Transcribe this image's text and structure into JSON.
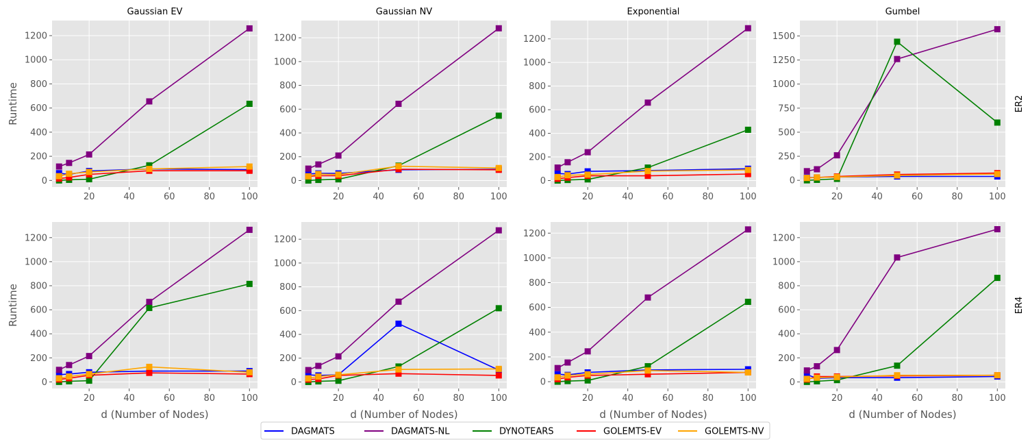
{
  "figure": {
    "row_labels": [
      "ER2",
      "ER4"
    ],
    "col_titles": [
      "Gaussian EV",
      "Gaussian NV",
      "Exponential",
      "Gumbel"
    ],
    "xlabel": "d (Number of Nodes)",
    "ylabel": "Runtime"
  },
  "legend": {
    "placement": "bottom-center",
    "items": [
      {
        "name": "DAGMATS",
        "color": "#0000ff"
      },
      {
        "name": "DAGMATS-NL",
        "color": "#800080"
      },
      {
        "name": "DYNOTEARS",
        "color": "#008000"
      },
      {
        "name": "GOLEMTS-EV",
        "color": "#ff0000"
      },
      {
        "name": "GOLEMTS-NV",
        "color": "#ffa500"
      }
    ]
  },
  "chart_data": [
    {
      "type": "line",
      "title": "Gaussian EV",
      "row": "ER2",
      "xlabel": "",
      "ylabel": "Runtime",
      "x": [
        5,
        10,
        20,
        50,
        100
      ],
      "xticks": [
        20,
        40,
        60,
        80,
        100
      ],
      "xlim": [
        1.5,
        104
      ],
      "yticks": [
        0,
        200,
        400,
        600,
        800,
        1000,
        1200
      ],
      "ylim": [
        -55,
        1325
      ],
      "grid": true,
      "series": [
        {
          "name": "DAGMATS",
          "values": [
            60,
            50,
            78,
            95,
            90
          ]
        },
        {
          "name": "DAGMATS-NL",
          "values": [
            115,
            145,
            215,
            655,
            1260
          ]
        },
        {
          "name": "DYNOTEARS",
          "values": [
            0,
            5,
            10,
            125,
            635
          ]
        },
        {
          "name": "GOLEMTS-EV",
          "values": [
            15,
            25,
            50,
            80,
            80
          ]
        },
        {
          "name": "GOLEMTS-NV",
          "values": [
            35,
            55,
            70,
            95,
            115
          ]
        }
      ]
    },
    {
      "type": "line",
      "title": "Gaussian NV",
      "row": "ER2",
      "xlabel": "",
      "ylabel": "",
      "x": [
        5,
        10,
        20,
        50,
        100
      ],
      "xticks": [
        20,
        40,
        60,
        80,
        100
      ],
      "xlim": [
        1.5,
        104
      ],
      "yticks": [
        0,
        200,
        400,
        600,
        800,
        1000,
        1200
      ],
      "ylim": [
        -55,
        1345
      ],
      "grid": true,
      "series": [
        {
          "name": "DAGMATS",
          "values": [
            55,
            60,
            60,
            90,
            95
          ]
        },
        {
          "name": "DAGMATS-NL",
          "values": [
            100,
            135,
            210,
            645,
            1280
          ]
        },
        {
          "name": "DYNOTEARS",
          "values": [
            0,
            5,
            10,
            125,
            545
          ]
        },
        {
          "name": "GOLEMTS-EV",
          "values": [
            35,
            40,
            40,
            95,
            90
          ]
        },
        {
          "name": "GOLEMTS-NV",
          "values": [
            35,
            55,
            50,
            120,
            105
          ]
        }
      ]
    },
    {
      "type": "line",
      "title": "Exponential",
      "row": "ER2",
      "xlabel": "",
      "ylabel": "",
      "x": [
        5,
        10,
        20,
        50,
        100
      ],
      "xticks": [
        20,
        40,
        60,
        80,
        100
      ],
      "xlim": [
        1.5,
        104
      ],
      "yticks": [
        0,
        200,
        400,
        600,
        800,
        1000,
        1200
      ],
      "ylim": [
        -55,
        1355
      ],
      "grid": true,
      "series": [
        {
          "name": "DAGMATS",
          "values": [
            60,
            55,
            78,
            85,
            100
          ]
        },
        {
          "name": "DAGMATS-NL",
          "values": [
            110,
            155,
            240,
            660,
            1290
          ]
        },
        {
          "name": "DYNOTEARS",
          "values": [
            0,
            5,
            10,
            110,
            430
          ]
        },
        {
          "name": "GOLEMTS-EV",
          "values": [
            15,
            25,
            40,
            40,
            55
          ]
        },
        {
          "name": "GOLEMTS-NV",
          "values": [
            30,
            45,
            50,
            80,
            90
          ]
        }
      ]
    },
    {
      "type": "line",
      "title": "Gumbel",
      "row": "ER2",
      "xlabel": "",
      "ylabel": "",
      "x": [
        5,
        10,
        20,
        50,
        100
      ],
      "xticks": [
        20,
        40,
        60,
        80,
        100
      ],
      "xlim": [
        1.5,
        104
      ],
      "yticks": [
        0,
        250,
        500,
        750,
        1000,
        1250,
        1500
      ],
      "ylim": [
        -70,
        1660
      ],
      "grid": true,
      "series": [
        {
          "name": "DAGMATS",
          "values": [
            30,
            30,
            35,
            40,
            40
          ]
        },
        {
          "name": "DAGMATS-NL",
          "values": [
            95,
            115,
            260,
            1260,
            1570
          ]
        },
        {
          "name": "DYNOTEARS",
          "values": [
            0,
            5,
            15,
            1440,
            600
          ]
        },
        {
          "name": "GOLEMTS-EV",
          "values": [
            25,
            30,
            40,
            60,
            75
          ]
        },
        {
          "name": "GOLEMTS-NV",
          "values": [
            25,
            30,
            35,
            50,
            65
          ]
        }
      ]
    },
    {
      "type": "line",
      "title": "",
      "row": "ER4",
      "xlabel": "d (Number of Nodes)",
      "ylabel": "Runtime",
      "x": [
        5,
        10,
        20,
        50,
        100
      ],
      "xticks": [
        20,
        40,
        60,
        80,
        100
      ],
      "xlim": [
        1.5,
        104
      ],
      "yticks": [
        0,
        200,
        400,
        600,
        800,
        1000,
        1200
      ],
      "ylim": [
        -55,
        1330
      ],
      "grid": true,
      "series": [
        {
          "name": "DAGMATS",
          "values": [
            60,
            65,
            80,
            90,
            90
          ]
        },
        {
          "name": "DAGMATS-NL",
          "values": [
            100,
            140,
            215,
            665,
            1265
          ]
        },
        {
          "name": "DYNOTEARS",
          "values": [
            0,
            5,
            10,
            615,
            815
          ]
        },
        {
          "name": "GOLEMTS-EV",
          "values": [
            20,
            30,
            55,
            75,
            65
          ]
        },
        {
          "name": "GOLEMTS-NV",
          "values": [
            30,
            45,
            65,
            125,
            80
          ]
        }
      ]
    },
    {
      "type": "line",
      "title": "",
      "row": "ER4",
      "xlabel": "d (Number of Nodes)",
      "ylabel": "",
      "x": [
        5,
        10,
        20,
        50,
        100
      ],
      "xticks": [
        20,
        40,
        60,
        80,
        100
      ],
      "xlim": [
        1.5,
        104
      ],
      "yticks": [
        0,
        200,
        400,
        600,
        800,
        1000,
        1200
      ],
      "ylim": [
        -55,
        1345
      ],
      "grid": true,
      "series": [
        {
          "name": "DAGMATS",
          "values": [
            60,
            55,
            60,
            490,
            100
          ]
        },
        {
          "name": "DAGMATS-NL",
          "values": [
            100,
            135,
            215,
            675,
            1275
          ]
        },
        {
          "name": "DYNOTEARS",
          "values": [
            0,
            5,
            10,
            130,
            620
          ]
        },
        {
          "name": "GOLEMTS-EV",
          "values": [
            20,
            25,
            55,
            70,
            55
          ]
        },
        {
          "name": "GOLEMTS-NV",
          "values": [
            30,
            45,
            60,
            105,
            110
          ]
        }
      ]
    },
    {
      "type": "line",
      "title": "",
      "row": "ER4",
      "xlabel": "d (Number of Nodes)",
      "ylabel": "",
      "x": [
        5,
        10,
        20,
        50,
        100
      ],
      "xticks": [
        20,
        40,
        60,
        80,
        100
      ],
      "xlim": [
        1.5,
        104
      ],
      "yticks": [
        0,
        200,
        400,
        600,
        800,
        1000,
        1200
      ],
      "ylim": [
        -55,
        1290
      ],
      "grid": true,
      "series": [
        {
          "name": "DAGMATS",
          "values": [
            60,
            55,
            75,
            95,
            100
          ]
        },
        {
          "name": "DAGMATS-NL",
          "values": [
            110,
            155,
            245,
            680,
            1230
          ]
        },
        {
          "name": "DYNOTEARS",
          "values": [
            0,
            5,
            10,
            125,
            645
          ]
        },
        {
          "name": "GOLEMTS-EV",
          "values": [
            20,
            35,
            50,
            60,
            75
          ]
        },
        {
          "name": "GOLEMTS-NV",
          "values": [
            35,
            50,
            60,
            90,
            75
          ]
        }
      ]
    },
    {
      "type": "line",
      "title": "",
      "row": "ER4",
      "xlabel": "d (Number of Nodes)",
      "ylabel": "",
      "x": [
        5,
        10,
        20,
        50,
        100
      ],
      "xticks": [
        20,
        40,
        60,
        80,
        100
      ],
      "xlim": [
        1.5,
        104
      ],
      "yticks": [
        0,
        200,
        400,
        600,
        800,
        1000,
        1200
      ],
      "ylim": [
        -55,
        1330
      ],
      "grid": true,
      "series": [
        {
          "name": "DAGMATS",
          "values": [
            60,
            30,
            35,
            35,
            45
          ]
        },
        {
          "name": "DAGMATS-NL",
          "values": [
            95,
            130,
            265,
            1035,
            1270
          ]
        },
        {
          "name": "DYNOTEARS",
          "values": [
            0,
            5,
            15,
            135,
            865
          ]
        },
        {
          "name": "GOLEMTS-EV",
          "values": [
            20,
            45,
            45,
            50,
            55
          ]
        },
        {
          "name": "GOLEMTS-NV",
          "values": [
            25,
            35,
            40,
            55,
            55
          ]
        }
      ]
    }
  ]
}
